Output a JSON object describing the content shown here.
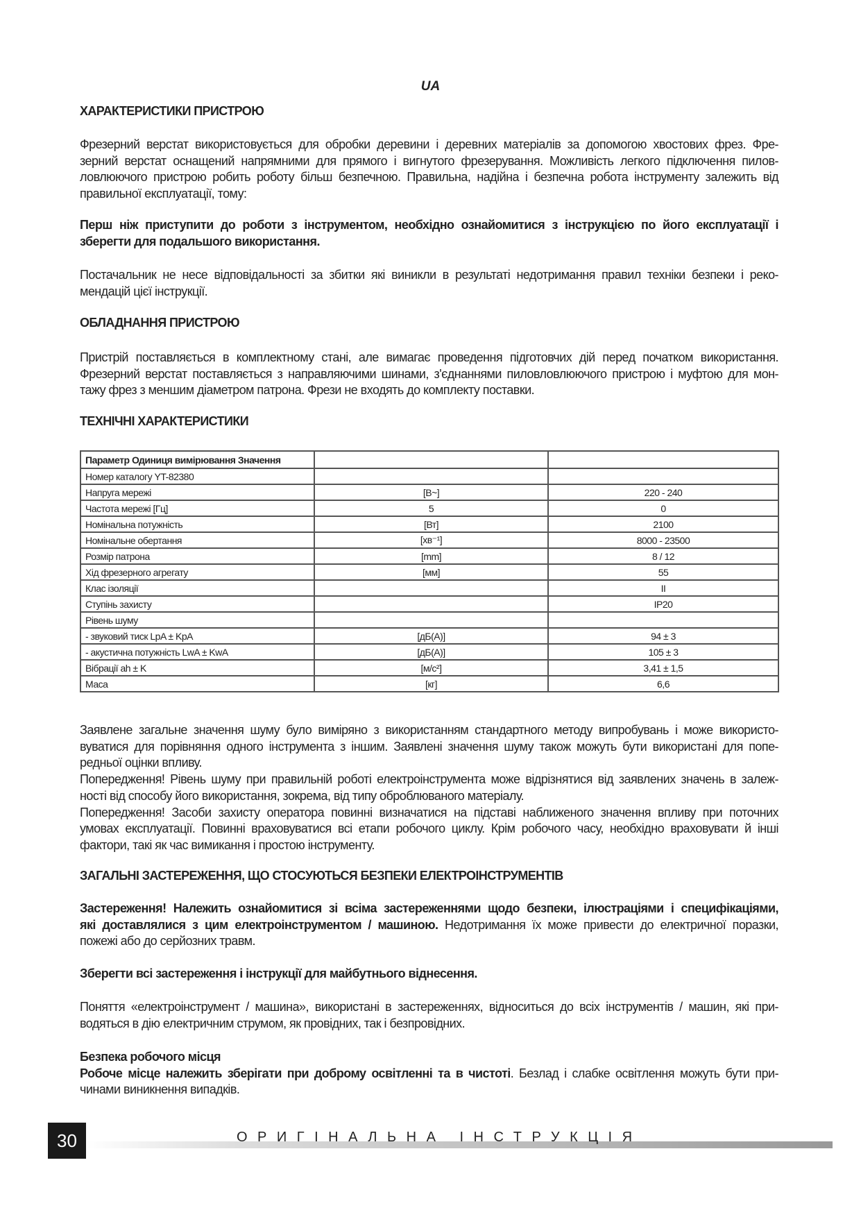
{
  "lang_label": "UA",
  "sections": {
    "h1": "ХАРАКТЕРИСТИКИ ПРИСТРОЮ",
    "p1": [
      "Фрезерний верстат використовується для обробки деревини і деревних матеріалів за допомогою хвостових фрез. Фре-",
      "зерний верстат оснащений напрямними для прямого і вигнутого фрезерування. Можливість легкого підключення пилов-",
      "ловлюючого пристрою робить роботу більш безпечною. Правильна, надійна і безпечна робота інструменту залежить від",
      "правильної експлуатації, тому:"
    ],
    "p2": [
      "Перш ніж приступити до роботи з інструментом, необхідно ознайомитися з інструкцією по його експлуатації і",
      "зберегти для подальшого використання."
    ],
    "p3": [
      "Постачальник не несе відповідальності за збитки які виникли в результаті недотримання правил техніки безпеки і реко-",
      "мендацій цієї інструкції."
    ],
    "h2": "ОБЛАДНАННЯ ПРИСТРОЮ",
    "p4": [
      "Пристрій поставляється в комплектному стані, але вимагає проведення підготовчих дій перед початком використання.",
      "Фрезерний верстат поставляється з направляючими шинами, з'єднаннями пиловловлюючого пристрою і муфтою для мон-",
      "тажу фрез з меншим діаметром патрона. Фрези не входять до комплекту поставки."
    ],
    "h3": "ТЕХНІЧНІ ХАРАКТЕРИСТИКИ",
    "p5": [
      "Заявлене загальне значення шуму було виміряно з використанням стандартного методу випробувань і може використо-",
      "вуватися для порівняння одного інструмента з іншим. Заявлені значення шуму також можуть бути використані для попе-",
      "редньої оцінки впливу.",
      "Попередження! Рівень шуму при правильній роботі електроінструмента може відрізнятися від заявлених значень в залеж-",
      "ності від способу його використання, зокрема, від типу оброблюваного матеріалу.",
      "Попередження! Засоби захисту оператора повинні визначатися на підставі наближеного значення впливу при поточних",
      "умовах експлуатації. Повинні враховуватися всі етапи робочого циклу. Крім робочого часу, необхідно враховувати й інші",
      "фактори, такі як час вимикання і простою інструменту."
    ],
    "h4": "ЗАГАЛЬНІ ЗАСТЕРЕЖЕННЯ, ЩО СТОСУЮТЬСЯ БЕЗПЕКИ ЕЛЕКТРОІНСТРУМЕНТІВ",
    "p6_bold1": "Застереження! Належить ознайомитися зі всіма застереженнями щодо безпеки, ілюстраціями і специфікаціями,",
    "p6_bold2": "які доставлялися з цим електроінструментом / машиною.",
    "p6_rest2": " Недотримання їх може привести до електричної поразки,",
    "p6_line3": "пожежі або до серйозних травм.",
    "p7": "Зберегти всі застереження і інструкції для майбутнього віднесення.",
    "p8": [
      "Поняття «електроінструмент / машина», використані в застереженнях, відноситься до всіх інструментів / машин, які при-",
      "водяться в дію електричним струмом, як провідних, так і безпровідних."
    ],
    "h5": "Безпека робочого місця",
    "p9_bold": "Робоче місце належить зберігати при доброму освітленні та в чистоті",
    "p9_rest": ". Безлад і слабке освітлення можуть бути при-",
    "p9_line2": "чинами виникнення випадків."
  },
  "table": {
    "header": "Параметр   Одиниця вимірювання   Значення",
    "rows": [
      [
        "Номер каталогу    YT-82380",
        "",
        ""
      ],
      [
        "Напруга мережі",
        "[В~]",
        "220 - 240"
      ],
      [
        "Частота мережі   [Гц]",
        "5",
        "0"
      ],
      [
        "Номінальна потужність",
        "[Вт]",
        "2100"
      ],
      [
        "Номінальне обертання",
        "[хв⁻¹]",
        "8000 - 23500"
      ],
      [
        "Розмір патрона",
        "[mm]",
        "8 / 12"
      ],
      [
        "Хід фрезерного агрегату",
        "[мм]",
        "55"
      ],
      [
        "Клас ізоляції",
        "",
        "II"
      ],
      [
        "Ступінь захисту",
        "",
        "IP20"
      ],
      [
        "Рівень шуму",
        "",
        ""
      ],
      [
        "- звуковий тиск  LpA ± KpA",
        "[дБ(А)]",
        "94 ± 3"
      ],
      [
        "- акустична потужність LwA ± KwA",
        "[дБ(А)]",
        "105 ± 3"
      ],
      [
        "Вібрації ah ± K",
        "[м/с²]",
        "3,41 ± 1,5"
      ],
      [
        "Маса",
        "[кг]",
        "6,6"
      ]
    ]
  },
  "footer": {
    "page_number": "30",
    "title": "ОРИГІНАЛЬНА ІНСТРУКЦІЯ"
  }
}
